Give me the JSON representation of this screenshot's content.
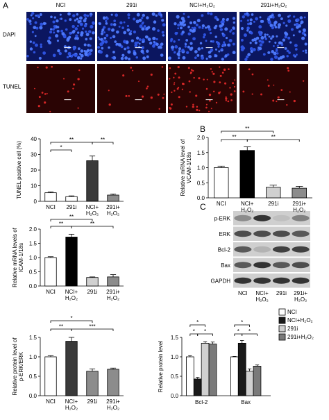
{
  "panel_labels": [
    "A",
    "B",
    "C"
  ],
  "microscopy": {
    "columns": [
      "NCI",
      "291i",
      "NCI+H₂O₂",
      "291i+H₂O₂"
    ],
    "rows": [
      "DAPI",
      "TUNEL"
    ]
  },
  "western_blot": {
    "rows": [
      "p-ERK",
      "ERK",
      "Bcl-2",
      "Bax",
      "GAPDH"
    ],
    "columns": [
      "NCI",
      "NCI+H₂O₂",
      "291i",
      "291i+H₂O₂"
    ]
  },
  "chart_data": [
    {
      "type": "bar",
      "ylabel": "TUNEL positive cell (%)",
      "categories": [
        "NCI",
        "291i",
        "NCI+H₂O₂",
        "291i+H₂O₂"
      ],
      "values": [
        5.5,
        3,
        26,
        4
      ],
      "errors": [
        0.5,
        0.5,
        3,
        0.7
      ],
      "colors": [
        "#ffffff",
        "#ffffff",
        "#3a3a3a",
        "#8c8c8c"
      ],
      "ylim": [
        0,
        40
      ],
      "yticks": [
        0,
        10,
        20,
        30,
        40
      ],
      "significance": [
        {
          "between": [
            "NCI",
            "NCI+H₂O₂"
          ],
          "label": "**"
        },
        {
          "between": [
            "NCI+H₂O₂",
            "291i+H₂O₂"
          ],
          "label": "**"
        },
        {
          "between": [
            "NCI",
            "291i"
          ],
          "label": "*"
        }
      ]
    },
    {
      "type": "bar",
      "ylabel": "Relative mRNA level of VCAM-1/18s",
      "categories": [
        "NCI",
        "NCI+H₂O₂",
        "291i",
        "291i+H₂O₂"
      ],
      "values": [
        1.0,
        1.57,
        0.35,
        0.32
      ],
      "errors": [
        0.05,
        0.12,
        0.07,
        0.06
      ],
      "colors": [
        "#ffffff",
        "#000000",
        "#d0d0d0",
        "#8c8c8c"
      ],
      "ylim": [
        0,
        2
      ],
      "yticks": [
        {
          "value": 0,
          "label": "0.0"
        },
        {
          "value": 0.5,
          "label": "0.5"
        },
        {
          "value": 1,
          "label": "1.0"
        },
        {
          "value": 1.5,
          "label": "1.5"
        },
        {
          "value": 2,
          "label": "2.0"
        }
      ],
      "significance": [
        {
          "between": [
            "NCI",
            "291i"
          ],
          "label": "**"
        },
        {
          "between": [
            "NCI",
            "NCI+H₂O₂"
          ],
          "label": "**"
        },
        {
          "between": [
            "NCI+H₂O₂",
            "291i+H₂O₂"
          ],
          "label": "**"
        }
      ]
    },
    {
      "type": "bar",
      "ylabel": "Relative mRNA levels of ICAM-1/18s",
      "categories": [
        "NCI",
        "NCI+H₂O₂",
        "291i",
        "291i+H₂O₂"
      ],
      "values": [
        1.0,
        1.72,
        0.3,
        0.32
      ],
      "errors": [
        0.03,
        0.1,
        0.02,
        0.08
      ],
      "colors": [
        "#ffffff",
        "#000000",
        "#d0d0d0",
        "#8c8c8c"
      ],
      "ylim": [
        0,
        2
      ],
      "yticks": [
        {
          "value": 0,
          "label": "0.0"
        },
        {
          "value": 0.5,
          "label": "0.5"
        },
        {
          "value": 1,
          "label": "1.0"
        },
        {
          "value": 1.5,
          "label": "1.5"
        },
        {
          "value": 2,
          "label": "2.0"
        }
      ],
      "significance": [
        {
          "between": [
            "NCI",
            "291i"
          ],
          "label": "**"
        },
        {
          "between": [
            "NCI",
            "NCI+H₂O₂"
          ],
          "label": "**"
        },
        {
          "between": [
            "NCI+H₂O₂",
            "291i+H₂O₂"
          ],
          "label": "**"
        }
      ]
    },
    {
      "type": "bar",
      "ylabel": "Relative protein level of p-ERK/ERK",
      "categories": [
        "NCI",
        "NCI+H₂O₂",
        "291i",
        "291i+H₂O₂"
      ],
      "values": [
        1.0,
        1.4,
        0.63,
        0.68
      ],
      "errors": [
        0.03,
        0.1,
        0.06,
        0.03
      ],
      "colors": [
        "#ffffff",
        "#3a3a3a",
        "#8c8c8c",
        "#8c8c8c"
      ],
      "ylim": [
        0,
        1.5
      ],
      "yticks": [
        {
          "value": 0,
          "label": "0.0"
        },
        {
          "value": 0.5,
          "label": "0.5"
        },
        {
          "value": 1,
          "label": "1.0"
        },
        {
          "value": 1.5,
          "label": "1.5"
        }
      ],
      "significance": [
        {
          "between": [
            "NCI",
            "291i"
          ],
          "label": "*"
        },
        {
          "between": [
            "NCI",
            "NCI+H₂O₂"
          ],
          "label": "**"
        },
        {
          "between": [
            "NCI+H₂O₂",
            "291i+H₂O₂"
          ],
          "label": "***"
        }
      ]
    },
    {
      "type": "grouped-bar",
      "ylabel": "Relative protein level",
      "categories": [
        "Bcl-2",
        "Bax"
      ],
      "series": [
        {
          "name": "NCI",
          "color": "#ffffff",
          "values": [
            1.0,
            1.0
          ],
          "errors": [
            0.03,
            0.01
          ]
        },
        {
          "name": "NCI+H₂O₂",
          "color": "#1a1a1a",
          "values": [
            0.43,
            1.35
          ],
          "errors": [
            0.04,
            0.07
          ]
        },
        {
          "name": "291i",
          "color": "#d0d0d0",
          "values": [
            1.35,
            0.63
          ],
          "errors": [
            0.04,
            0.06
          ]
        },
        {
          "name": "291i+H₂O₂",
          "color": "#7a7a7a",
          "values": [
            1.33,
            0.76
          ],
          "errors": [
            0.05,
            0.03
          ]
        }
      ],
      "ylim": [
        0,
        1.5
      ],
      "yticks": [
        {
          "value": 0,
          "label": "0.0"
        },
        {
          "value": 0.5,
          "label": "0.5"
        },
        {
          "value": 1,
          "label": "1.0"
        },
        {
          "value": 1.5,
          "label": "1.5"
        }
      ],
      "significance": [
        {
          "category": "Bcl-2",
          "between": [
            "NCI",
            "291i"
          ],
          "label": "*"
        },
        {
          "category": "Bcl-2",
          "between": [
            "NCI",
            "NCI+H₂O₂"
          ],
          "label": "*"
        },
        {
          "category": "Bcl-2",
          "between": [
            "NCI+H₂O₂",
            "291i+H₂O₂"
          ],
          "label": "*"
        },
        {
          "category": "Bax",
          "between": [
            "NCI",
            "291i"
          ],
          "label": "*"
        },
        {
          "category": "Bax",
          "between": [
            "NCI",
            "NCI+H₂O₂"
          ],
          "label": "*"
        },
        {
          "category": "Bax",
          "between": [
            "NCI+H₂O₂",
            "291i+H₂O₂"
          ],
          "label": "*"
        }
      ]
    }
  ]
}
